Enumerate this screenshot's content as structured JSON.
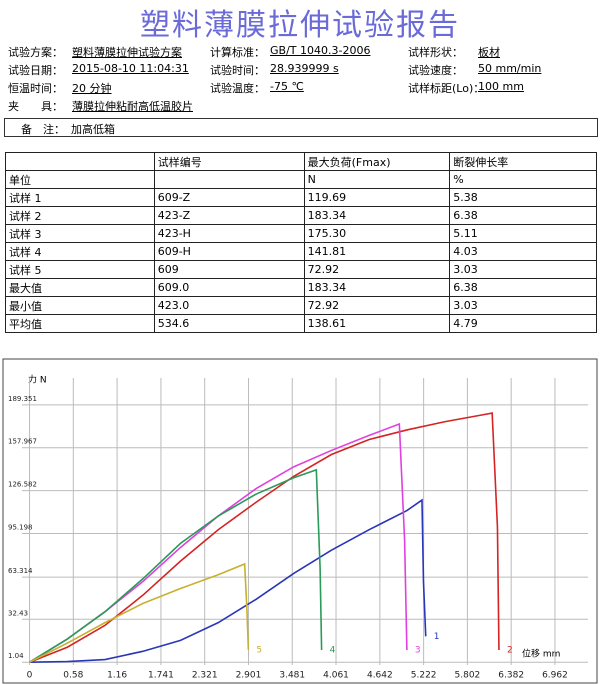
{
  "header": {
    "title": "塑料薄膜拉伸试验报告"
  },
  "info": [
    [
      [
        "试验方案：",
        "塑料薄膜拉伸试验方案"
      ],
      [
        "计算标准：",
        "GB/T 1040.3-2006"
      ],
      [
        "试样形状：",
        "板材"
      ]
    ],
    [
      [
        "试验日期：",
        "2015-08-10 11:04:31"
      ],
      [
        "试验时间：",
        "28.939999 s"
      ],
      [
        "试验速度：",
        "50 mm/min"
      ]
    ],
    [
      [
        "恒温时间：",
        "20 分钟"
      ],
      [
        "试验温度：",
        "-75 ℃"
      ],
      [
        "试样标距(Lo)：",
        "100 mm"
      ]
    ],
    [
      [
        "夹　　具：",
        "薄膜拉伸粘耐高低温胶片"
      ]
    ]
  ],
  "remark": [
    "备　注：",
    "加高低箱"
  ],
  "table": {
    "header": [
      null,
      "试样编号",
      "最大负荷(Fmax)",
      "断裂伸长率"
    ],
    "units": [
      "单位",
      null,
      "N",
      "%"
    ],
    "rows": [
      [
        "试样 1",
        "609-Z",
        "119.69",
        "5.38"
      ],
      [
        "试样 2",
        "423-Z",
        "183.34",
        "6.38"
      ],
      [
        "试样 3",
        "423-H",
        "175.30",
        "5.11"
      ],
      [
        "试样 4",
        "609-H",
        "141.81",
        "4.03"
      ],
      [
        "试样 5",
        "609",
        "72.92",
        "3.03"
      ],
      [
        "最大值",
        "609.0",
        "183.34",
        "6.38"
      ],
      [
        "最小值",
        "423.0",
        "72.92",
        "3.03"
      ],
      [
        "平均值",
        "534.6",
        "138.61",
        "4.79"
      ]
    ]
  },
  "chart": {
    "type": "line",
    "ylabel": "力 N",
    "xlabel": "位移 mm",
    "grid": true,
    "xlim": [
      -0.1,
      7.4
    ],
    "ylim": [
      -1,
      209
    ],
    "xticks": [
      0,
      0.58,
      1.16,
      1.741,
      2.321,
      2.901,
      3.481,
      4.061,
      4.642,
      5.222,
      5.802,
      6.382,
      6.962
    ],
    "yticks": [
      1.04,
      32.43,
      63.314,
      95.198,
      126.582,
      157.967,
      189.351
    ],
    "series": [
      {
        "name": "1",
        "color": "#2a36b8",
        "x": [
          0,
          0.5,
          1.0,
          1.5,
          2.0,
          2.5,
          3.0,
          3.5,
          4.0,
          4.5,
          5.0,
          5.2,
          5.22,
          5.25
        ],
        "values": [
          1.04,
          1.5,
          3,
          9,
          17,
          30,
          47,
          66,
          83,
          98,
          112,
          119.69,
          60,
          20
        ]
      },
      {
        "name": "2",
        "color": "#d42424",
        "x": [
          0,
          0.5,
          1.0,
          1.5,
          2.0,
          2.5,
          3.0,
          3.5,
          4.0,
          4.5,
          5.0,
          5.5,
          6.0,
          6.13,
          6.2,
          6.22
        ],
        "values": [
          1.04,
          12,
          28,
          50,
          75,
          98,
          118,
          137,
          153,
          164,
          171,
          177,
          182,
          183.34,
          100,
          10
        ]
      },
      {
        "name": "3",
        "color": "#e040e0",
        "x": [
          0,
          0.5,
          1.0,
          1.5,
          2.0,
          2.5,
          3.0,
          3.5,
          4.0,
          4.5,
          4.9,
          4.97,
          5.0
        ],
        "values": [
          1.04,
          18,
          38,
          60,
          85,
          108,
          128,
          144,
          156,
          167,
          175.3,
          90,
          10
        ]
      },
      {
        "name": "4",
        "color": "#2a9a5a",
        "x": [
          0,
          0.5,
          1.0,
          1.5,
          2.0,
          2.5,
          3.0,
          3.5,
          3.8,
          3.85,
          3.87
        ],
        "values": [
          1.04,
          18,
          38,
          62,
          88,
          108,
          124,
          136,
          141.81,
          70,
          10
        ]
      },
      {
        "name": "5",
        "color": "#c8b030",
        "x": [
          0,
          0.5,
          1.0,
          1.5,
          2.0,
          2.5,
          2.85,
          2.88,
          2.9
        ],
        "values": [
          1.04,
          15,
          30,
          44,
          55,
          65,
          72.92,
          40,
          10
        ]
      }
    ]
  }
}
